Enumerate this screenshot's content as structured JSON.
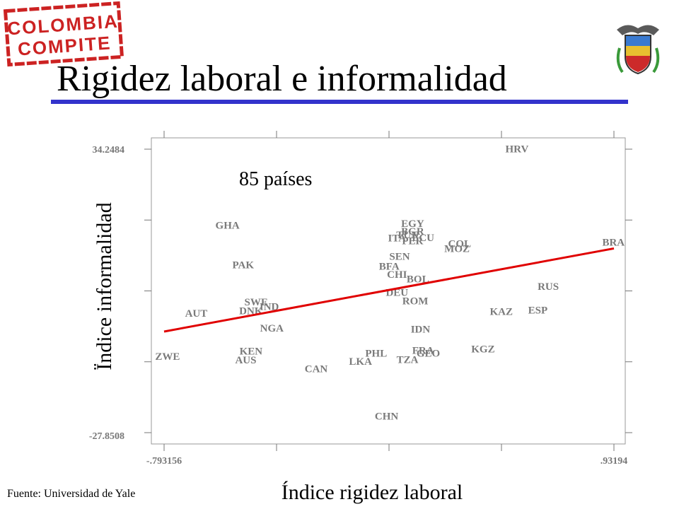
{
  "logo": {
    "line1": "COLOMBIA",
    "line2": "COMPITE"
  },
  "crest_icon": "colombia-coat-of-arms-icon",
  "title": "Rigidez laboral e informalidad",
  "source": "Fuente: Universidad de Yale",
  "colors": {
    "title_rule": "#3333cc",
    "fit_line": "#e00000",
    "labels": "#7a7a7a",
    "stamp": "#cc2222"
  },
  "chart_data": {
    "type": "scatter",
    "xlabel": "Índice rigidez laboral",
    "ylabel": "Ïndice informalidad",
    "annotation": "85 países",
    "x_ticks": [
      "-.793156",
      ".93194"
    ],
    "y_ticks": [
      "34.2484",
      "-27.8508"
    ],
    "xlim": [
      -0.793156,
      0.93194
    ],
    "ylim": [
      -27.8508,
      34.2484
    ],
    "grid": false,
    "points": [
      {
        "label": "HRV",
        "x": 0.56,
        "y": 34.3
      },
      {
        "label": "GHA",
        "x": -0.55,
        "y": 17.6
      },
      {
        "label": "EGY",
        "x": 0.16,
        "y": 18.0
      },
      {
        "label": "BGR",
        "x": 0.16,
        "y": 16.3
      },
      {
        "label": "TUN",
        "x": 0.14,
        "y": 15.5
      },
      {
        "label": "ITA",
        "x": 0.1,
        "y": 14.8
      },
      {
        "label": "ECU",
        "x": 0.2,
        "y": 14.9
      },
      {
        "label": "PER",
        "x": 0.16,
        "y": 14.2
      },
      {
        "label": "COL",
        "x": 0.34,
        "y": 13.6
      },
      {
        "label": "MOZ",
        "x": 0.33,
        "y": 12.5
      },
      {
        "label": "BRA",
        "x": 0.93,
        "y": 13.9
      },
      {
        "label": "SEN",
        "x": 0.11,
        "y": 10.8
      },
      {
        "label": "PAK",
        "x": -0.49,
        "y": 8.9
      },
      {
        "label": "BFA",
        "x": 0.07,
        "y": 8.6
      },
      {
        "label": "CHI",
        "x": 0.1,
        "y": 6.8
      },
      {
        "label": "BOL",
        "x": 0.18,
        "y": 5.8
      },
      {
        "label": "RUS",
        "x": 0.68,
        "y": 4.2
      },
      {
        "label": "DEU",
        "x": 0.1,
        "y": 2.9
      },
      {
        "label": "SWE",
        "x": -0.44,
        "y": 0.8
      },
      {
        "label": "IND",
        "x": -0.39,
        "y": -0.2
      },
      {
        "label": "ROM",
        "x": 0.17,
        "y": 1.0
      },
      {
        "label": "DNK",
        "x": -0.46,
        "y": -1.1
      },
      {
        "label": "AUT",
        "x": -0.67,
        "y": -1.7
      },
      {
        "label": "KAZ",
        "x": 0.5,
        "y": -1.3
      },
      {
        "label": "ESP",
        "x": 0.64,
        "y": -1.0
      },
      {
        "label": "NGA",
        "x": -0.38,
        "y": -4.9
      },
      {
        "label": "IDN",
        "x": 0.19,
        "y": -5.2
      },
      {
        "label": "KGZ",
        "x": 0.43,
        "y": -9.5
      },
      {
        "label": "KEN",
        "x": -0.46,
        "y": -10.0
      },
      {
        "label": "FRA",
        "x": 0.2,
        "y": -9.8
      },
      {
        "label": "PHL",
        "x": 0.02,
        "y": -10.4
      },
      {
        "label": "GEO",
        "x": 0.22,
        "y": -10.4
      },
      {
        "label": "ZWE",
        "x": -0.78,
        "y": -11.1
      },
      {
        "label": "AUS",
        "x": -0.48,
        "y": -11.9
      },
      {
        "label": "TZA",
        "x": 0.14,
        "y": -11.8
      },
      {
        "label": "LKA",
        "x": -0.04,
        "y": -12.2
      },
      {
        "label": "CAN",
        "x": -0.21,
        "y": -13.8
      },
      {
        "label": "CHN",
        "x": 0.06,
        "y": -24.2
      }
    ],
    "fit_line": [
      {
        "x": -0.793156,
        "y": -5.7
      },
      {
        "x": 0.93194,
        "y": 12.5
      }
    ]
  }
}
